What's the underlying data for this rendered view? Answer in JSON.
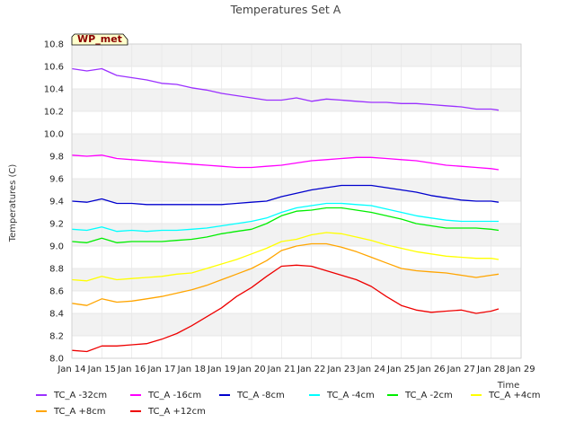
{
  "chart_data": {
    "type": "line",
    "title": "Temperatures Set A",
    "xlabel": "Time",
    "ylabel": "Temperatures (C)",
    "ylim": [
      8.0,
      10.8
    ],
    "y_ticks": [
      "8.0",
      "8.2",
      "8.4",
      "8.6",
      "8.8",
      "9.0",
      "9.2",
      "9.4",
      "9.6",
      "9.8",
      "10.0",
      "10.2",
      "10.4",
      "10.6",
      "10.8"
    ],
    "x_ticks": [
      "Jan 14",
      "Jan 15",
      "Jan 16",
      "Jan 17",
      "Jan 18",
      "Jan 19",
      "Jan 20",
      "Jan 21",
      "Jan 22",
      "Jan 23",
      "Jan 24",
      "Jan 25",
      "Jan 26",
      "Jan 27",
      "Jan 28",
      "Jan 29"
    ],
    "xlim": [
      "Jan 14",
      "Jan 29"
    ],
    "grid": true,
    "legend_position": "bottom",
    "badge": "WP_met",
    "x": [
      "Jan 14",
      "Jan 14 12:00",
      "Jan 15",
      "Jan 15 12:00",
      "Jan 16",
      "Jan 16 12:00",
      "Jan 17",
      "Jan 17 12:00",
      "Jan 18",
      "Jan 18 12:00",
      "Jan 19",
      "Jan 19 12:00",
      "Jan 20",
      "Jan 20 12:00",
      "Jan 21",
      "Jan 21 12:00",
      "Jan 22",
      "Jan 22 12:00",
      "Jan 23",
      "Jan 23 12:00",
      "Jan 24",
      "Jan 24 12:00",
      "Jan 25",
      "Jan 25 12:00",
      "Jan 26",
      "Jan 26 12:00",
      "Jan 27",
      "Jan 27 12:00",
      "Jan 28",
      "Jan 28 06:00"
    ],
    "series": [
      {
        "name": "TC_A -32cm",
        "color": "#9b30ff",
        "values": [
          10.58,
          10.56,
          10.58,
          10.52,
          10.5,
          10.48,
          10.45,
          10.44,
          10.41,
          10.39,
          10.36,
          10.34,
          10.32,
          10.3,
          10.3,
          10.32,
          10.29,
          10.31,
          10.3,
          10.29,
          10.28,
          10.28,
          10.27,
          10.27,
          10.26,
          10.25,
          10.24,
          10.22,
          10.22,
          10.21
        ]
      },
      {
        "name": "TC_A -16cm",
        "color": "#ff00ff",
        "values": [
          9.81,
          9.8,
          9.81,
          9.78,
          9.77,
          9.76,
          9.75,
          9.74,
          9.73,
          9.72,
          9.71,
          9.7,
          9.7,
          9.71,
          9.72,
          9.74,
          9.76,
          9.77,
          9.78,
          9.79,
          9.79,
          9.78,
          9.77,
          9.76,
          9.74,
          9.72,
          9.71,
          9.7,
          9.69,
          9.68
        ]
      },
      {
        "name": "TC_A -8cm",
        "color": "#0000cd",
        "values": [
          9.4,
          9.39,
          9.42,
          9.38,
          9.38,
          9.37,
          9.37,
          9.37,
          9.37,
          9.37,
          9.37,
          9.38,
          9.39,
          9.4,
          9.44,
          9.47,
          9.5,
          9.52,
          9.54,
          9.54,
          9.54,
          9.52,
          9.5,
          9.48,
          9.45,
          9.43,
          9.41,
          9.4,
          9.4,
          9.39
        ]
      },
      {
        "name": "TC_A -4cm",
        "color": "#00ffff",
        "values": [
          9.15,
          9.14,
          9.17,
          9.13,
          9.14,
          9.13,
          9.14,
          9.14,
          9.15,
          9.16,
          9.18,
          9.2,
          9.22,
          9.25,
          9.3,
          9.34,
          9.36,
          9.38,
          9.38,
          9.37,
          9.36,
          9.33,
          9.3,
          9.27,
          9.25,
          9.23,
          9.22,
          9.22,
          9.22,
          9.22
        ]
      },
      {
        "name": "TC_A -2cm",
        "color": "#00ee00",
        "values": [
          9.04,
          9.03,
          9.07,
          9.03,
          9.04,
          9.04,
          9.04,
          9.05,
          9.06,
          9.08,
          9.11,
          9.13,
          9.15,
          9.2,
          9.27,
          9.31,
          9.32,
          9.34,
          9.34,
          9.32,
          9.3,
          9.27,
          9.24,
          9.2,
          9.18,
          9.16,
          9.16,
          9.16,
          9.15,
          9.14
        ]
      },
      {
        "name": "TC_A +4cm",
        "color": "#ffff00",
        "values": [
          8.7,
          8.69,
          8.73,
          8.7,
          8.71,
          8.72,
          8.73,
          8.75,
          8.76,
          8.8,
          8.84,
          8.88,
          8.93,
          8.98,
          9.04,
          9.06,
          9.1,
          9.12,
          9.11,
          9.08,
          9.05,
          9.01,
          8.98,
          8.95,
          8.93,
          8.91,
          8.9,
          8.89,
          8.89,
          8.88
        ]
      },
      {
        "name": "TC_A +8cm",
        "color": "#ffa500",
        "values": [
          8.49,
          8.47,
          8.53,
          8.5,
          8.51,
          8.53,
          8.55,
          8.58,
          8.61,
          8.65,
          8.7,
          8.75,
          8.8,
          8.87,
          8.96,
          9.0,
          9.02,
          9.02,
          8.99,
          8.95,
          8.9,
          8.85,
          8.8,
          8.78,
          8.77,
          8.76,
          8.74,
          8.72,
          8.74,
          8.75
        ]
      },
      {
        "name": "TC_A +12cm",
        "color": "#ee0000",
        "values": [
          8.07,
          8.06,
          8.11,
          8.11,
          8.12,
          8.13,
          8.17,
          8.22,
          8.29,
          8.37,
          8.45,
          8.55,
          8.63,
          8.73,
          8.82,
          8.83,
          8.82,
          8.78,
          8.74,
          8.7,
          8.64,
          8.55,
          8.47,
          8.43,
          8.41,
          8.42,
          8.43,
          8.4,
          8.42,
          8.44
        ]
      }
    ]
  }
}
